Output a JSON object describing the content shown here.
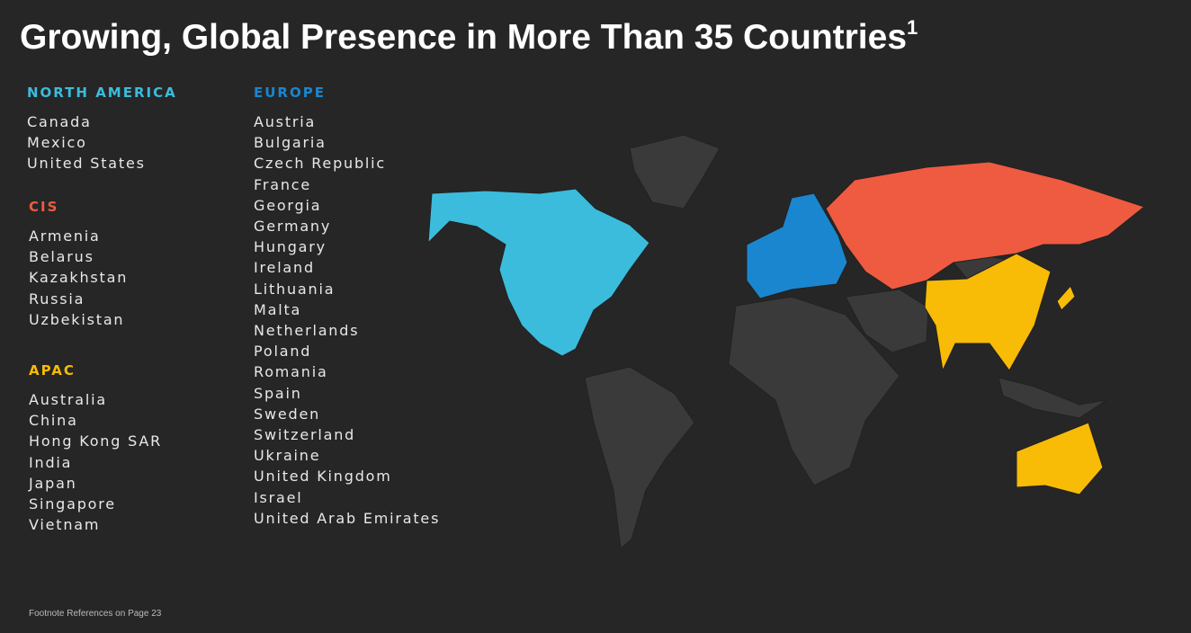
{
  "header": {
    "title": "Growing, Global Presence in More Than 35 Countries",
    "title_marker": "1"
  },
  "regions": [
    {
      "name": "NORTH AMERICA",
      "color": "#3bbcdc",
      "countries": [
        "Canada",
        "Mexico",
        "United States"
      ]
    },
    {
      "name": "EUROPE",
      "color": "#1a86cf",
      "countries": [
        "Austria",
        "Bulgaria",
        "Czech Republic",
        "France",
        "Georgia",
        "Germany",
        "Hungary",
        "Ireland",
        "Lithuania",
        "Malta",
        "Netherlands",
        "Poland",
        "Romania",
        "Spain",
        "Sweden",
        "Switzerland",
        "Ukraine",
        "United Kingdom",
        "Israel",
        "United Arab Emirates"
      ]
    },
    {
      "name": "CIS",
      "color": "#ef5b40",
      "countries": [
        "Armenia",
        "Belarus",
        "Kazakhstan",
        "Russia",
        "Uzbekistan"
      ]
    },
    {
      "name": "APAC",
      "color": "#f8bb06",
      "countries": [
        "Australia",
        "China",
        "Hong Kong SAR",
        "India",
        "Japan",
        "Singapore",
        "Vietnam"
      ]
    }
  ],
  "footer": {
    "note": "Footnote References on Page 23"
  }
}
